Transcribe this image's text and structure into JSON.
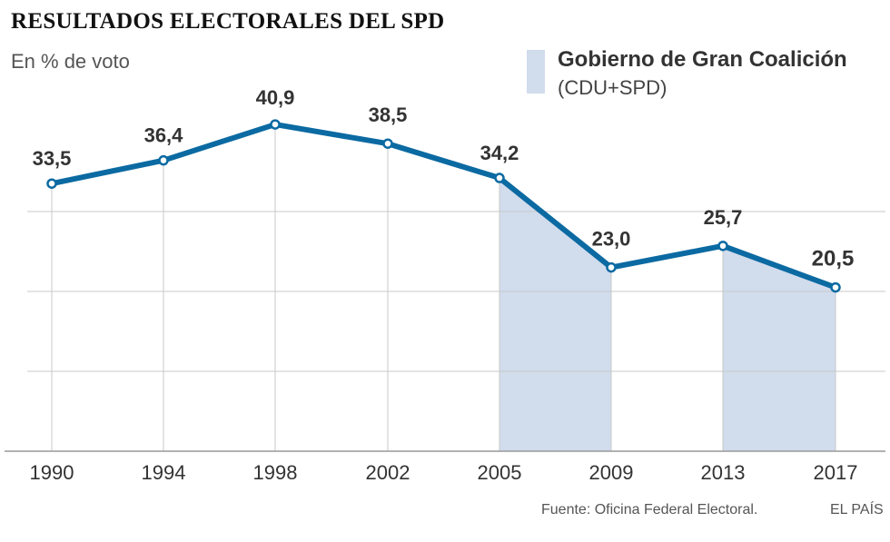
{
  "header": {
    "title": "RESULTADOS ELECTORALES DEL SPD",
    "subtitle": "En % de voto"
  },
  "legend": {
    "title": "Gobierno de Gran Coalición",
    "subtitle": "(CDU+SPD)"
  },
  "footer": {
    "source": "Fuente: Oficina Federal Electoral.",
    "brand": "EL PAÍS"
  },
  "colors": {
    "line": "#0b6aa2",
    "shade": "#d1dced",
    "grid": "#c8c8c8",
    "axis": "#999999"
  },
  "chart_data": {
    "type": "line",
    "title": "RESULTADOS ELECTORALES DEL SPD",
    "ylabel": "En % de voto",
    "xlabel": "",
    "categories": [
      "1990",
      "1994",
      "1998",
      "2002",
      "2005",
      "2009",
      "2013",
      "2017"
    ],
    "values": [
      33.5,
      36.4,
      40.9,
      38.5,
      34.2,
      23.0,
      25.7,
      20.5
    ],
    "value_labels": [
      "33,5",
      "36,4",
      "40,9",
      "38,5",
      "34,2",
      "23,0",
      "25,7",
      "20,5"
    ],
    "ylim": [
      0,
      45
    ],
    "gridlines": [
      10,
      20,
      30
    ],
    "shaded_periods": [
      {
        "label": "Gobierno de Gran Coalición (CDU+SPD)",
        "from": "2005",
        "to": "2009"
      },
      {
        "label": "Gobierno de Gran Coalición (CDU+SPD)",
        "from": "2013",
        "to": "2017"
      }
    ]
  }
}
